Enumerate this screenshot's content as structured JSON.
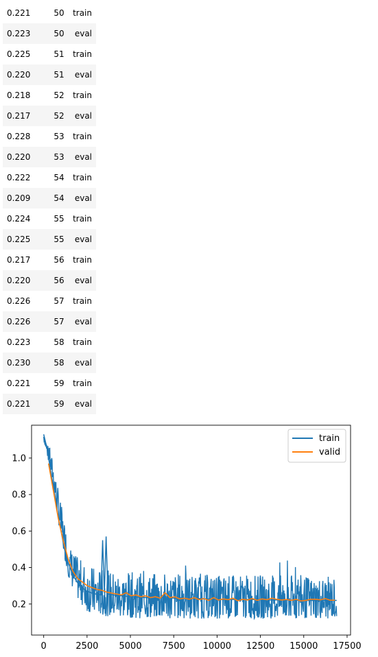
{
  "table": {
    "rows": [
      {
        "loss": "0.221",
        "epoch": "50",
        "split": "train"
      },
      {
        "loss": "0.223",
        "epoch": "50",
        "split": "eval"
      },
      {
        "loss": "0.225",
        "epoch": "51",
        "split": "train"
      },
      {
        "loss": "0.220",
        "epoch": "51",
        "split": "eval"
      },
      {
        "loss": "0.218",
        "epoch": "52",
        "split": "train"
      },
      {
        "loss": "0.217",
        "epoch": "52",
        "split": "eval"
      },
      {
        "loss": "0.228",
        "epoch": "53",
        "split": "train"
      },
      {
        "loss": "0.220",
        "epoch": "53",
        "split": "eval"
      },
      {
        "loss": "0.222",
        "epoch": "54",
        "split": "train"
      },
      {
        "loss": "0.209",
        "epoch": "54",
        "split": "eval"
      },
      {
        "loss": "0.224",
        "epoch": "55",
        "split": "train"
      },
      {
        "loss": "0.225",
        "epoch": "55",
        "split": "eval"
      },
      {
        "loss": "0.217",
        "epoch": "56",
        "split": "train"
      },
      {
        "loss": "0.220",
        "epoch": "56",
        "split": "eval"
      },
      {
        "loss": "0.226",
        "epoch": "57",
        "split": "train"
      },
      {
        "loss": "0.226",
        "epoch": "57",
        "split": "eval"
      },
      {
        "loss": "0.223",
        "epoch": "58",
        "split": "train"
      },
      {
        "loss": "0.230",
        "epoch": "58",
        "split": "eval"
      },
      {
        "loss": "0.221",
        "epoch": "59",
        "split": "train"
      },
      {
        "loss": "0.221",
        "epoch": "59",
        "split": "eval"
      }
    ]
  },
  "chart_data": {
    "type": "line",
    "title": "",
    "xlabel": "",
    "ylabel": "",
    "xlim": [
      -700,
      17700
    ],
    "ylim": [
      0.03,
      1.18
    ],
    "xticks": [
      0,
      2500,
      5000,
      7500,
      10000,
      12500,
      15000,
      17500
    ],
    "xtick_labels": [
      "0",
      "2500",
      "5000",
      "7500",
      "10000",
      "12500",
      "15000",
      "17500"
    ],
    "yticks": [
      0.2,
      0.4,
      0.6,
      0.8,
      1.0
    ],
    "ytick_labels": [
      "0.2",
      "0.4",
      "0.6",
      "0.8",
      "1.0"
    ],
    "grid": false,
    "legend_position": "top-right",
    "series": [
      {
        "name": "train",
        "color": "#1f77b4",
        "x": [
          0,
          200,
          400,
          600,
          800,
          1000,
          1200,
          1400,
          1600,
          1800,
          2000,
          2200,
          2500,
          2800,
          3000,
          3300,
          3400,
          3500,
          3600,
          3700,
          4000,
          4500,
          5000,
          6000,
          7000,
          8000,
          9000,
          10000,
          11000,
          12000,
          13000,
          14000,
          15000,
          16000,
          16900
        ],
        "y": [
          1.13,
          1.05,
          0.93,
          0.82,
          0.7,
          0.6,
          0.5,
          0.43,
          0.38,
          0.34,
          0.31,
          0.29,
          0.27,
          0.26,
          0.255,
          0.25,
          0.55,
          0.26,
          0.57,
          0.255,
          0.25,
          0.245,
          0.24,
          0.235,
          0.235,
          0.23,
          0.23,
          0.225,
          0.225,
          0.225,
          0.222,
          0.222,
          0.22,
          0.22,
          0.22
        ],
        "noise_band": {
          "x": [
            0,
            500,
            1000,
            1500,
            2000,
            2500,
            3000,
            4000,
            6000,
            8000,
            10000,
            12000,
            14000,
            16000,
            16900
          ],
          "low": [
            1.1,
            0.88,
            0.55,
            0.32,
            0.22,
            0.16,
            0.14,
            0.13,
            0.12,
            0.12,
            0.12,
            0.12,
            0.12,
            0.12,
            0.12
          ],
          "high": [
            1.14,
            1.0,
            0.75,
            0.52,
            0.45,
            0.42,
            0.4,
            0.38,
            0.37,
            0.37,
            0.36,
            0.36,
            0.36,
            0.35,
            0.35
          ]
        }
      },
      {
        "name": "valid",
        "color": "#ff7f0e",
        "x": [
          280,
          560,
          840,
          1120,
          1400,
          1680,
          1960,
          2240,
          2520,
          2800,
          3080,
          3360,
          3640,
          3920,
          4200,
          4480,
          4760,
          5040,
          5320,
          5600,
          5880,
          6160,
          6440,
          6720,
          7000,
          7280,
          7560,
          7840,
          8120,
          8400,
          8680,
          8960,
          9240,
          9520,
          9800,
          10080,
          10360,
          10640,
          10920,
          11200,
          11480,
          11760,
          12040,
          12320,
          12600,
          12880,
          13160,
          13440,
          13720,
          14000,
          14280,
          14560,
          14840,
          15120,
          15400,
          15680,
          15960,
          16240,
          16520,
          16800
        ],
        "y": [
          0.97,
          0.82,
          0.67,
          0.55,
          0.45,
          0.38,
          0.34,
          0.32,
          0.3,
          0.29,
          0.28,
          0.275,
          0.265,
          0.26,
          0.255,
          0.25,
          0.262,
          0.245,
          0.25,
          0.24,
          0.245,
          0.235,
          0.24,
          0.232,
          0.262,
          0.235,
          0.24,
          0.228,
          0.232,
          0.226,
          0.235,
          0.224,
          0.23,
          0.22,
          0.235,
          0.222,
          0.228,
          0.224,
          0.232,
          0.218,
          0.226,
          0.222,
          0.23,
          0.22,
          0.228,
          0.224,
          0.232,
          0.226,
          0.222,
          0.225,
          0.22,
          0.226,
          0.217,
          0.22,
          0.226,
          0.226,
          0.223,
          0.23,
          0.221,
          0.221
        ]
      }
    ]
  }
}
